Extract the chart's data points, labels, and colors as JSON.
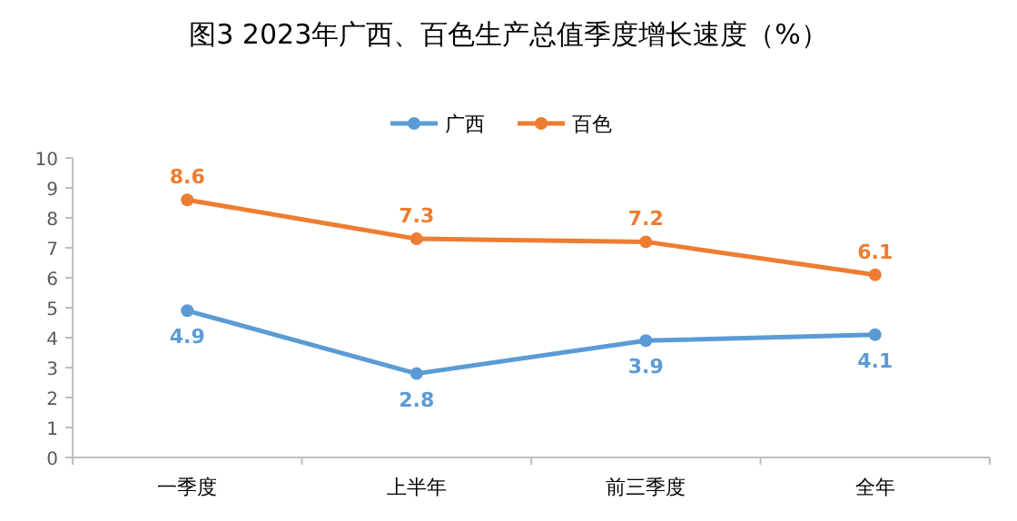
{
  "chart_data": {
    "type": "line",
    "title": "图3 2023年广西、百色生产总值季度增长速度（%）",
    "categories": [
      "一季度",
      "上半年",
      "前三季度",
      "全年"
    ],
    "series": [
      {
        "name": "广西",
        "color": "#5b9bd5",
        "values": [
          4.9,
          2.8,
          3.9,
          4.1
        ]
      },
      {
        "name": "百色",
        "color": "#ed7d31",
        "values": [
          8.6,
          7.3,
          7.2,
          6.1
        ]
      }
    ],
    "ylim": [
      0,
      10
    ],
    "yticks": [
      0,
      1,
      2,
      3,
      4,
      5,
      6,
      7,
      8,
      9,
      10
    ],
    "grid": false,
    "legend": "top",
    "marker": "circle",
    "line_style": "solid",
    "data_labels": true
  }
}
